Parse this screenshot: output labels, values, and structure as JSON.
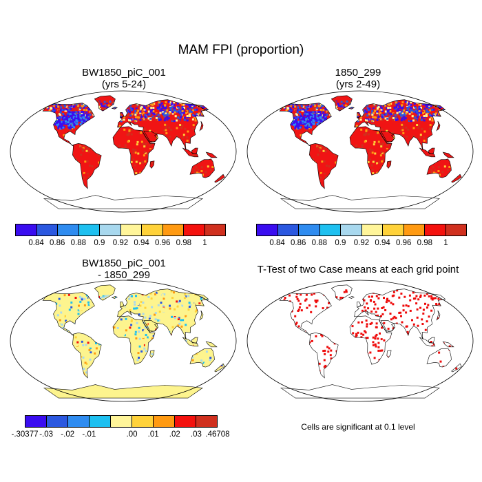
{
  "title": "MAM FPI (proportion)",
  "panels": [
    {
      "title_line1": "BW1850_piC_001",
      "title_line2": "(yrs 5-24)"
    },
    {
      "title_line1": "1850_299",
      "title_line2": "(yrs 2-49)"
    },
    {
      "title_line1": "BW1850_piC_001",
      "title_line2": "- 1850_299"
    },
    {
      "title_line1": "T-Test of two Case means at each grid point"
    }
  ],
  "colorbar_top": {
    "colors": [
      "#3a0df0",
      "#2b58e0",
      "#2f8cf0",
      "#1ec0f0",
      "#a8d8ee",
      "#fff59a",
      "#ffd23a",
      "#ff9a12",
      "#f4120e",
      "#d0301e"
    ],
    "labels": [
      "0.84",
      "0.86",
      "0.88",
      "0.9",
      "0.92",
      "0.94",
      "0.96",
      "0.98",
      "1"
    ]
  },
  "colorbar_diff": {
    "colors": [
      "#3a0df0",
      "#2b58e0",
      "#2f8cf0",
      "#1ec0f0",
      "#fff59a",
      "#ffd23a",
      "#ff9a12",
      "#f4120e",
      "#d0301e"
    ],
    "labels": [
      "-.30377",
      "-.03",
      "-.02",
      "-.01",
      ".00",
      ".01",
      ".02",
      ".03",
      ".46708"
    ]
  },
  "ttest_note": "Cells are significant at 0.1 level"
}
